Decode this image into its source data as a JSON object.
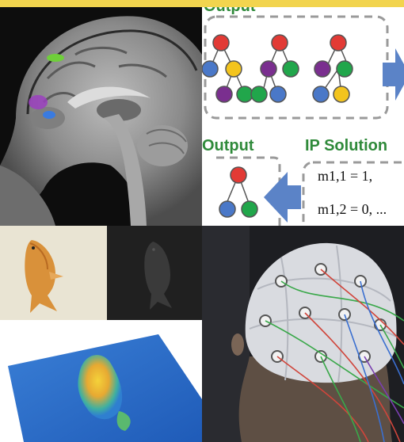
{
  "collage": {
    "accent_color": "#f2d44e",
    "panels": [
      {
        "name": "mri-brain-sagittal"
      },
      {
        "name": "tree-ip-diagram"
      },
      {
        "name": "fish-photo"
      },
      {
        "name": "fish-ir"
      },
      {
        "name": "fish-surface-plot"
      },
      {
        "name": "eeg-cap-photo"
      }
    ]
  },
  "diagram": {
    "top_label": "Output",
    "output_label": "Output",
    "ip_label": "IP Solution",
    "eq1": "m1,1 = 1,",
    "eq2": "m1,2 = 0, ...",
    "node_colors": {
      "red": "#e23a35",
      "blue": "#4a78c8",
      "yellow": "#f3c41e",
      "green": "#21a64b",
      "purple": "#7a2f8f"
    },
    "arrow_color": "#5b83c7"
  }
}
